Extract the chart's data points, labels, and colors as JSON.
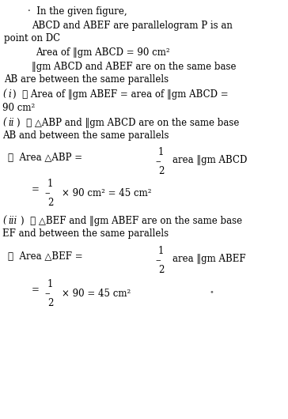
{
  "bg_color": "#ffffff",
  "text_color": "#000000",
  "figsize": [
    3.64,
    5.3
  ],
  "dpi": 100
}
